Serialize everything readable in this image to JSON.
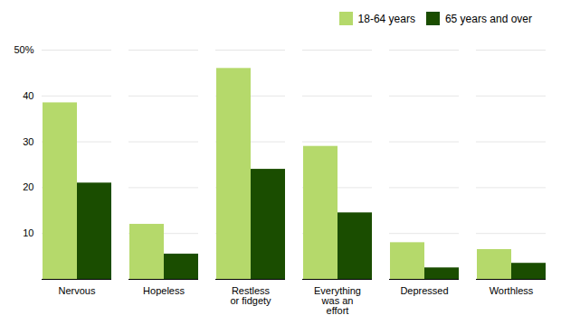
{
  "chart_data": {
    "type": "bar",
    "categories": [
      "Nervous",
      "Hopeless",
      "Restless\nor fidgety",
      "Everything\nwas an\neffort",
      "Depressed",
      "Worthless"
    ],
    "series": [
      {
        "name": "18-64 years",
        "color": "#b5d96b",
        "values": [
          38.5,
          12,
          46,
          29,
          8,
          6.5
        ]
      },
      {
        "name": "65 years and over",
        "color": "#1a4d00",
        "values": [
          21,
          5.5,
          24,
          14.5,
          2.5,
          3.5
        ]
      }
    ],
    "ylim": [
      0,
      50
    ],
    "yticks": [
      {
        "value": 0,
        "label": ""
      },
      10,
      20,
      30,
      40,
      {
        "value": 50,
        "label": "50%"
      }
    ],
    "grid": true,
    "legend": "top-right"
  }
}
